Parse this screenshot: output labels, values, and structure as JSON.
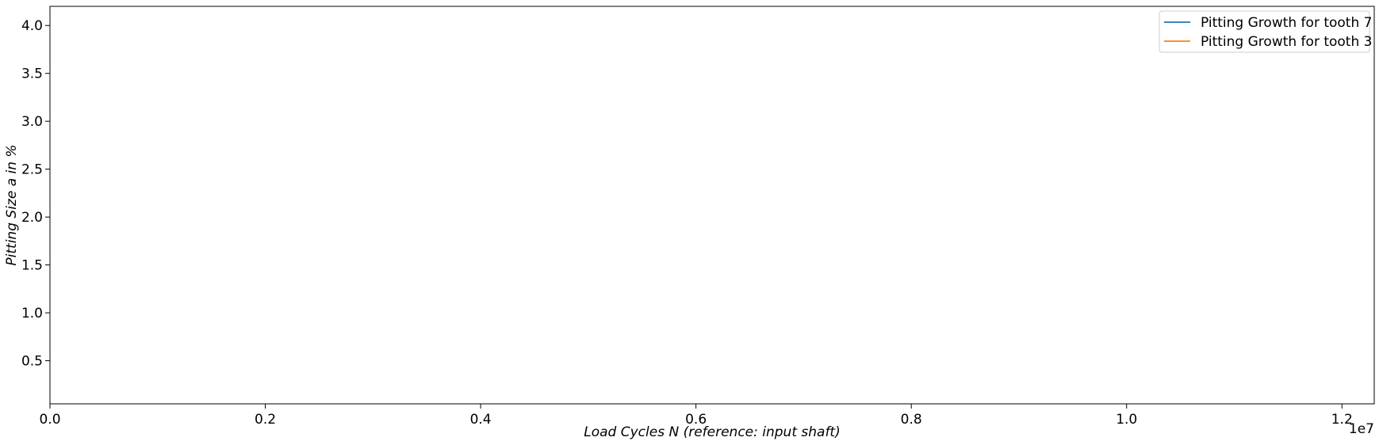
{
  "chart_data": {
    "type": "line",
    "title": "",
    "xlabel": "Load Cycles N (reference:  input shaft)",
    "ylabel": "Pitting Size a in %",
    "x_offset_label": "1e7",
    "xlim": [
      0,
      12300000
    ],
    "ylim": [
      0.05,
      4.2
    ],
    "x_scale_factor": 10000000,
    "x_ticks": [
      0.0,
      0.2,
      0.4,
      0.6,
      0.8,
      1.0,
      1.2
    ],
    "x_tick_labels": [
      "0.0",
      "0.2",
      "0.4",
      "0.6",
      "0.8",
      "1.0",
      "1.2"
    ],
    "y_ticks": [
      0.5,
      1.0,
      1.5,
      2.0,
      2.5,
      3.0,
      3.5,
      4.0
    ],
    "y_tick_labels": [
      "0.5",
      "1.0",
      "1.5",
      "2.0",
      "2.5",
      "3.0",
      "3.5",
      "4.0"
    ],
    "grid": false,
    "legend_position": "top-right",
    "series": [
      {
        "name": "Pitting Growth for tooth 7",
        "color": "#1f77b4",
        "x": [],
        "y": []
      },
      {
        "name": "Pitting Growth for tooth 3",
        "color": "#ff7f0e",
        "x": [],
        "y": []
      }
    ]
  }
}
